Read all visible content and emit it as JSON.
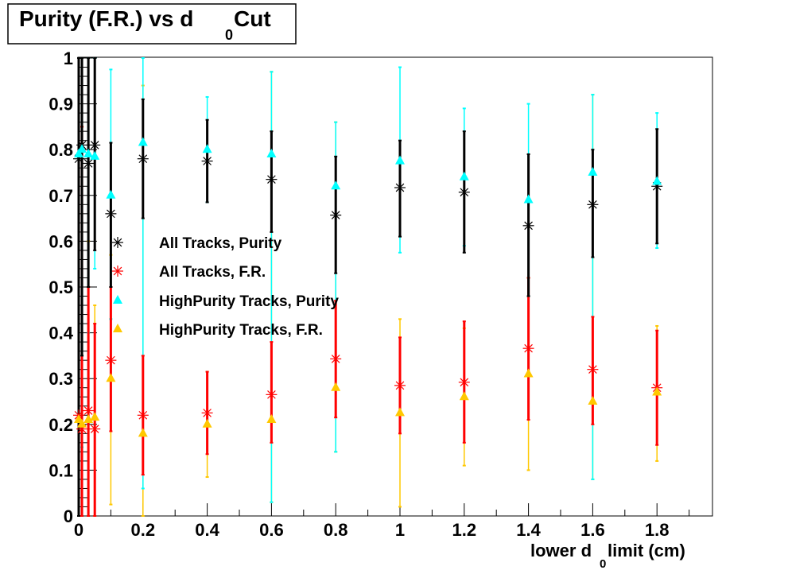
{
  "chart_data": {
    "type": "scatter",
    "title": "Purity (F.R.) vs d",
    "title_sub": "0",
    "title_end": " Cut",
    "xlabel": "lower d",
    "xlabel_sub": "0",
    "xlabel_end": " limit (cm)",
    "ylabel": "",
    "xlim": [
      0,
      1.97
    ],
    "ylim": [
      0,
      1
    ],
    "x_ticks": [
      "0",
      "0.2",
      "0.4",
      "0.6",
      "0.8",
      "1",
      "1.2",
      "1.4",
      "1.6",
      "1.8"
    ],
    "y_ticks": [
      "0",
      "0.1",
      "0.2",
      "0.3",
      "0.4",
      "0.5",
      "0.6",
      "0.7",
      "0.8",
      "0.9",
      "1"
    ],
    "grid": false,
    "legend_placement": "center-left",
    "x": [
      0,
      0.01,
      0.03,
      0.05,
      0.1,
      0.2,
      0.4,
      0.6,
      0.8,
      1.0,
      1.2,
      1.4,
      1.6,
      1.8
    ],
    "series": [
      {
        "name": "All Tracks, Purity",
        "marker": "star",
        "color": "#000000",
        "values": [
          0.78,
          0.81,
          0.77,
          0.81,
          0.66,
          0.78,
          0.775,
          0.735,
          0.657,
          0.717,
          0.707,
          0.634,
          0.68,
          0.72
        ],
        "err_low": [
          0.0,
          0.35,
          0.5,
          0.58,
          0.5,
          0.65,
          0.685,
          0.62,
          0.53,
          0.61,
          0.575,
          0.48,
          0.565,
          0.595
        ],
        "err_high": [
          1,
          1,
          1,
          1,
          0.815,
          0.91,
          0.865,
          0.84,
          0.785,
          0.82,
          0.84,
          0.79,
          0.8,
          0.845
        ]
      },
      {
        "name": "All Tracks, F.R.",
        "marker": "star",
        "color": "#ff0000",
        "values": [
          0.22,
          0.19,
          0.23,
          0.19,
          0.34,
          0.22,
          0.225,
          0.265,
          0.343,
          0.285,
          0.292,
          0.366,
          0.32,
          0.28
        ],
        "err_low": [
          0,
          0,
          0,
          0,
          0.185,
          0.09,
          0.135,
          0.16,
          0.215,
          0.18,
          0.16,
          0.21,
          0.2,
          0.155
        ],
        "err_high": [
          1,
          0.85,
          0.5,
          0.42,
          0.5,
          0.35,
          0.315,
          0.38,
          0.47,
          0.39,
          0.425,
          0.52,
          0.435,
          0.405
        ]
      },
      {
        "name": "HighPurity Tracks, Purity",
        "marker": "triangle",
        "color": "#00ffff",
        "values": [
          0.79,
          0.8,
          0.79,
          0.785,
          0.7,
          0.815,
          0.8,
          0.79,
          0.72,
          0.775,
          0.74,
          0.69,
          0.75,
          0.73
        ],
        "err_low": [
          0,
          0.15,
          0.4,
          0.54,
          0.43,
          0.06,
          0.685,
          0.03,
          0.14,
          0.575,
          0.59,
          0.48,
          0.08,
          0.585
        ],
        "err_high": [
          1,
          1,
          1,
          1,
          0.975,
          1,
          0.915,
          0.97,
          0.86,
          0.98,
          0.89,
          0.9,
          0.92,
          0.88
        ]
      },
      {
        "name": "HighPurity Tracks, F.R.",
        "marker": "triangle",
        "color": "#ffc800",
        "values": [
          0.21,
          0.2,
          0.21,
          0.215,
          0.3,
          0.18,
          0.2,
          0.21,
          0.28,
          0.225,
          0.26,
          0.31,
          0.25,
          0.27
        ],
        "err_low": [
          0,
          0,
          0,
          0,
          0.025,
          0,
          0.085,
          0.03,
          0.14,
          0.02,
          0.11,
          0.1,
          0.08,
          0.12
        ],
        "err_high": [
          1,
          0.85,
          0.6,
          0.46,
          0.57,
          0.94,
          0.315,
          0.97,
          0.86,
          0.43,
          0.41,
          0.52,
          0.92,
          0.415
        ]
      }
    ]
  }
}
